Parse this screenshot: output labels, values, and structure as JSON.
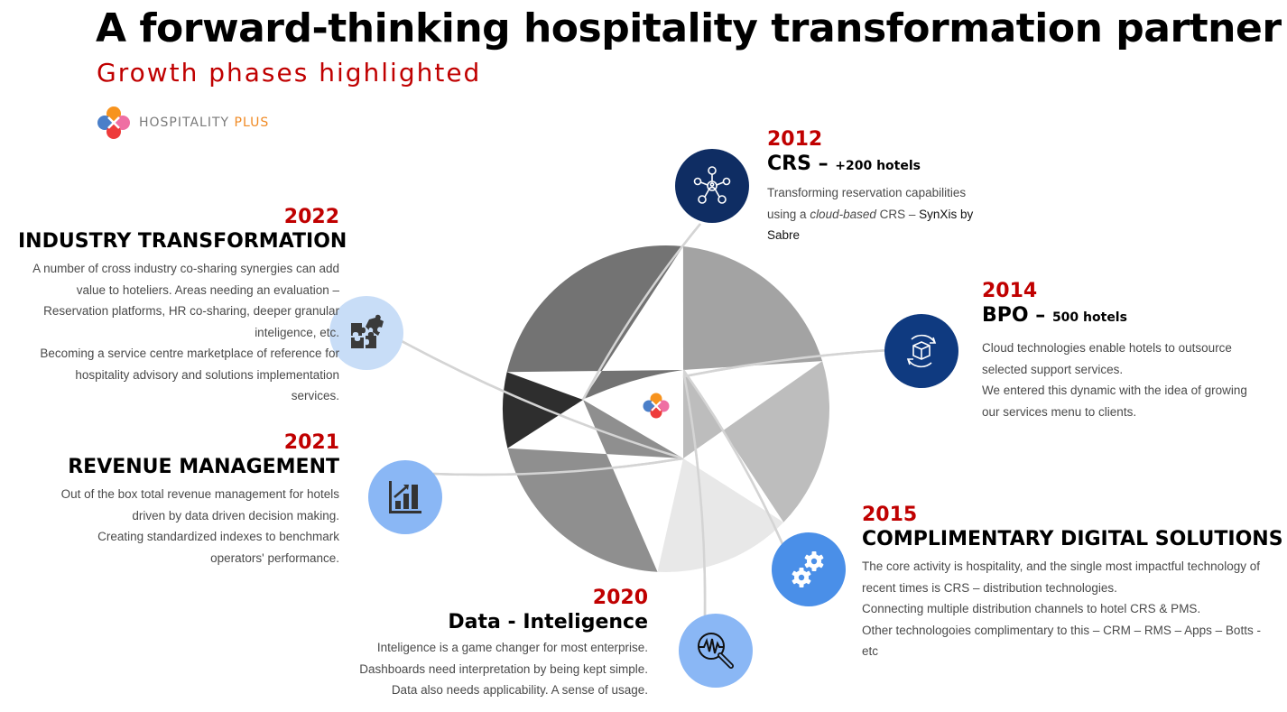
{
  "header": {
    "title": "A forward-thinking hospitality transformation partner",
    "subtitle": "Growth phases highlighted"
  },
  "brand": {
    "name_main": "HOSPITALITY",
    "name_accent": "PLUS",
    "colors": {
      "orange": "#f7931e",
      "blue": "#4a7fc9",
      "pink": "#ef6fa3",
      "red": "#ee3b3b"
    }
  },
  "colors": {
    "year_red": "#c00000",
    "navy": "#0f2d63",
    "icon_blue": "#4a8fe8",
    "icon_light_blue": "#8ab7f5",
    "icon_pale_blue": "#c8ddf7"
  },
  "diagram": {
    "segment_shades": [
      "#a3a3a3",
      "#bdbdbd",
      "#e8e8e8",
      "#8f8f8f",
      "#2e2e2e",
      "#737373"
    ]
  },
  "phases": [
    {
      "year": "2012",
      "title": "CRS –",
      "title_small": "+200 hotels",
      "icon": "network-icon",
      "desc_lines": [
        "Transforming reservation capabilities",
        "using a",
        "cloud-based",
        "CRS –",
        "SynXis by Sabre"
      ]
    },
    {
      "year": "2014",
      "title": "BPO –",
      "title_small": "500 hotels",
      "icon": "box-cycle-icon",
      "desc_lines": [
        "Cloud technologies enable hotels to outsource selected support services.",
        "We entered this dynamic with the idea of growing our services menu to clients."
      ]
    },
    {
      "year": "2015",
      "title": "COMPLIMENTARY DIGITAL SOLUTIONS",
      "icon": "gears-icon",
      "desc_lines": [
        "The core activity is hospitality, and the single most impactful technology of recent times is CRS – distribution technologies.",
        "Connecting multiple distribution channels to hotel CRS & PMS.",
        "Other technologoies complimentary to this – CRM – RMS – Apps – Botts - etc"
      ]
    },
    {
      "year": "2020",
      "title": "Data - Inteligence",
      "icon": "analytics-search-icon",
      "desc_lines": [
        "Inteligence is a game changer for most enterprise.",
        "Dashboards need interpretation by being kept simple.",
        "Data also needs applicability. A sense of usage."
      ]
    },
    {
      "year": "2021",
      "title": "REVENUE MANAGEMENT",
      "icon": "bar-chart-growth-icon",
      "desc_lines": [
        "Out of the box total revenue management for hotels driven by data driven decision making.",
        "Creating standardized indexes to benchmark operators' performance."
      ]
    },
    {
      "year": "2022",
      "title": "INDUSTRY TRANSFORMATION",
      "icon": "puzzle-icon",
      "desc_lines": [
        "A number of cross industry co-sharing synergies can add value to hoteliers. Areas needing an evaluation – Reservation platforms, HR co-sharing, deeper granular inteligence, etc.",
        "Becoming a service centre marketplace of reference for hospitality advisory and solutions implementation services."
      ]
    }
  ]
}
